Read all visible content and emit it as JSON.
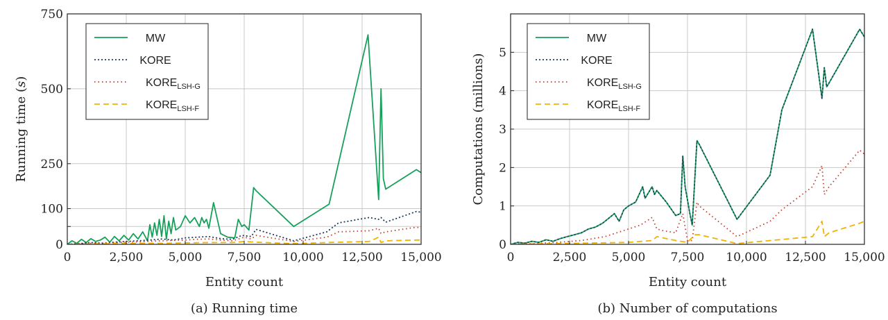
{
  "chart_data": [
    {
      "type": "line",
      "caption": "(a) Running time",
      "xlabel": "Entity count",
      "ylabel_prefix": "Running time (",
      "ylabel_unit": "s",
      "ylabel_suffix": ")",
      "xlim": [
        0,
        15000
      ],
      "xticks": [
        0,
        2500,
        5000,
        7500,
        10000,
        12500,
        15000
      ],
      "xtick_labels": [
        "0",
        "2,500",
        "5,000",
        "7,500",
        "10,000",
        "12,500",
        "15,000"
      ],
      "yticks": [
        0,
        50,
        100,
        250,
        500,
        750
      ],
      "ytick_labels": [
        "0",
        "",
        "100",
        "250",
        "500",
        "750"
      ],
      "y_scale": "piecewise",
      "y_pieces": [
        [
          0,
          0
        ],
        [
          100,
          0.155
        ],
        [
          750,
          1.0
        ]
      ],
      "grid": true,
      "legend_position": "top-left",
      "series": [
        {
          "name": "MW",
          "sub": "",
          "color": "#16a05a",
          "dash": "solid",
          "x": [
            0,
            200,
            400,
            600,
            800,
            1000,
            1200,
            1400,
            1600,
            1800,
            2000,
            2200,
            2400,
            2600,
            2800,
            3000,
            3200,
            3400,
            3500,
            3600,
            3700,
            3800,
            3900,
            4000,
            4100,
            4200,
            4300,
            4400,
            4500,
            4600,
            4800,
            5000,
            5200,
            5400,
            5600,
            5700,
            5800,
            5900,
            6000,
            6200,
            6500,
            6800,
            7100,
            7250,
            7400,
            7500,
            7700,
            7900,
            8000,
            9600,
            11100,
            12750,
            13200,
            13300,
            13400,
            13500,
            14800,
            15000
          ],
          "y": [
            0,
            10,
            3,
            14,
            5,
            16,
            8,
            12,
            20,
            6,
            22,
            10,
            25,
            12,
            30,
            15,
            35,
            10,
            55,
            20,
            60,
            25,
            70,
            22,
            80,
            15,
            65,
            30,
            75,
            40,
            50,
            80,
            60,
            75,
            50,
            75,
            60,
            70,
            45,
            120,
            30,
            20,
            18,
            70,
            50,
            55,
            40,
            170,
            160,
            50,
            115,
            680,
            130,
            500,
            200,
            165,
            230,
            220
          ]
        },
        {
          "name": "KORE",
          "sub": "",
          "color": "#1d3b5e",
          "dash": "2 3",
          "x": [
            0,
            500,
            1000,
            1500,
            2000,
            2500,
            3000,
            3500,
            4000,
            4500,
            5000,
            5500,
            6000,
            6500,
            7000,
            7400,
            7800,
            8000,
            9600,
            11000,
            11500,
            12800,
            13200,
            13300,
            13500,
            14800,
            15000
          ],
          "y": [
            0,
            2,
            5,
            3,
            6,
            8,
            10,
            12,
            15,
            12,
            18,
            20,
            22,
            16,
            14,
            25,
            22,
            42,
            10,
            35,
            60,
            75,
            70,
            75,
            62,
            92,
            90
          ]
        },
        {
          "name": "KORE",
          "sub": "LSH-G",
          "color": "#c0392b",
          "dash": "1.5 4",
          "x": [
            0,
            500,
            1000,
            2000,
            3000,
            4000,
            5000,
            5500,
            6000,
            6500,
            7000,
            7500,
            7800,
            8000,
            9600,
            11000,
            11500,
            12800,
            13200,
            13300,
            13500,
            14800,
            15000
          ],
          "y": [
            0,
            2,
            3,
            5,
            7,
            10,
            12,
            14,
            15,
            12,
            10,
            20,
            15,
            25,
            8,
            20,
            35,
            38,
            45,
            30,
            35,
            48,
            46
          ]
        },
        {
          "name": "KORE",
          "sub": "LSH-F",
          "color": "#f0b400",
          "dash": "8 5",
          "x": [
            0,
            1000,
            2000,
            3000,
            4000,
            5000,
            6000,
            7000,
            7500,
            8000,
            9600,
            11000,
            12800,
            13200,
            13300,
            13500,
            14800,
            15000
          ],
          "y": [
            0,
            1,
            2,
            3,
            3,
            4,
            5,
            5,
            8,
            6,
            2,
            5,
            8,
            20,
            5,
            10,
            12,
            12
          ]
        }
      ]
    },
    {
      "type": "line",
      "caption": "(b) Number of computations",
      "xlabel": "Entity count",
      "ylabel": "Computations (millions)",
      "xlim": [
        0,
        15000
      ],
      "ylim": [
        0,
        6
      ],
      "xticks": [
        0,
        2500,
        5000,
        7500,
        10000,
        12500,
        15000
      ],
      "xtick_labels": [
        "0",
        "2,500",
        "5,000",
        "7,500",
        "10,000",
        "12,500",
        "15,000"
      ],
      "yticks": [
        0,
        1,
        2,
        3,
        4,
        5
      ],
      "ytick_labels": [
        "0",
        "1",
        "2",
        "3",
        "4",
        "5"
      ],
      "grid": true,
      "legend_position": "top-left",
      "series": [
        {
          "name": "MW",
          "sub": "",
          "color": "#16a05a",
          "dash": "solid",
          "x": [
            0,
            300,
            600,
            900,
            1200,
            1500,
            1800,
            2100,
            2400,
            2700,
            3000,
            3300,
            3600,
            3900,
            4200,
            4400,
            4600,
            4800,
            5000,
            5300,
            5600,
            5700,
            5800,
            6000,
            6100,
            6200,
            6600,
            7000,
            7200,
            7300,
            7400,
            7600,
            7700,
            7900,
            8000,
            9600,
            11000,
            11500,
            12800,
            13200,
            13300,
            13400,
            13500,
            14800,
            15000
          ],
          "y": [
            0,
            0.05,
            0.03,
            0.08,
            0.05,
            0.12,
            0.08,
            0.15,
            0.2,
            0.25,
            0.3,
            0.4,
            0.45,
            0.55,
            0.7,
            0.8,
            0.6,
            0.9,
            1.0,
            1.1,
            1.5,
            1.2,
            1.3,
            1.5,
            1.3,
            1.4,
            1.1,
            0.75,
            0.8,
            2.3,
            1.5,
            0.8,
            0.5,
            2.7,
            2.6,
            0.65,
            1.8,
            3.5,
            5.6,
            3.8,
            4.6,
            4.1,
            4.2,
            5.6,
            5.4
          ]
        },
        {
          "name": "KORE",
          "sub": "",
          "color": "#1d3b5e",
          "dash": "2 3",
          "x": [
            0,
            300,
            600,
            900,
            1200,
            1500,
            1800,
            2100,
            2400,
            2700,
            3000,
            3300,
            3600,
            3900,
            4200,
            4400,
            4600,
            4800,
            5000,
            5300,
            5600,
            5700,
            5800,
            6000,
            6100,
            6200,
            6600,
            7000,
            7200,
            7300,
            7400,
            7600,
            7700,
            7900,
            8000,
            9600,
            11000,
            11500,
            12800,
            13200,
            13300,
            13400,
            13500,
            14800,
            15000
          ],
          "y": [
            0,
            0.05,
            0.03,
            0.08,
            0.05,
            0.12,
            0.08,
            0.15,
            0.2,
            0.25,
            0.3,
            0.4,
            0.45,
            0.55,
            0.7,
            0.8,
            0.6,
            0.9,
            1.0,
            1.1,
            1.5,
            1.2,
            1.3,
            1.5,
            1.3,
            1.4,
            1.1,
            0.75,
            0.8,
            2.3,
            1.5,
            0.8,
            0.5,
            2.7,
            2.6,
            0.65,
            1.8,
            3.5,
            5.6,
            3.8,
            4.6,
            4.1,
            4.2,
            5.6,
            5.4
          ]
        },
        {
          "name": "KORE",
          "sub": "LSH-G",
          "color": "#c0392b",
          "dash": "1.5 4",
          "x": [
            0,
            1000,
            2000,
            3000,
            4000,
            4500,
            5000,
            5500,
            6000,
            6200,
            6500,
            7000,
            7300,
            7500,
            7700,
            7900,
            8000,
            9600,
            11000,
            11500,
            12800,
            13200,
            13300,
            13500,
            14800,
            15000
          ],
          "y": [
            0,
            0.02,
            0.05,
            0.1,
            0.2,
            0.3,
            0.4,
            0.5,
            0.7,
            0.4,
            0.35,
            0.3,
            0.8,
            0.1,
            0.1,
            1.1,
            1.0,
            0.2,
            0.6,
            0.9,
            1.5,
            2.05,
            1.3,
            1.5,
            2.45,
            2.35
          ]
        },
        {
          "name": "KORE",
          "sub": "LSH-F",
          "color": "#f0b400",
          "dash": "8 5",
          "x": [
            0,
            1000,
            2000,
            3000,
            4000,
            5000,
            6000,
            6200,
            7000,
            7500,
            7800,
            8000,
            9600,
            11000,
            12800,
            13200,
            13300,
            13500,
            14800,
            15000
          ],
          "y": [
            0,
            0.01,
            0.02,
            0.03,
            0.04,
            0.05,
            0.1,
            0.2,
            0.1,
            0.05,
            0.25,
            0.25,
            0.02,
            0.1,
            0.2,
            0.6,
            0.2,
            0.3,
            0.55,
            0.6
          ]
        }
      ]
    }
  ]
}
